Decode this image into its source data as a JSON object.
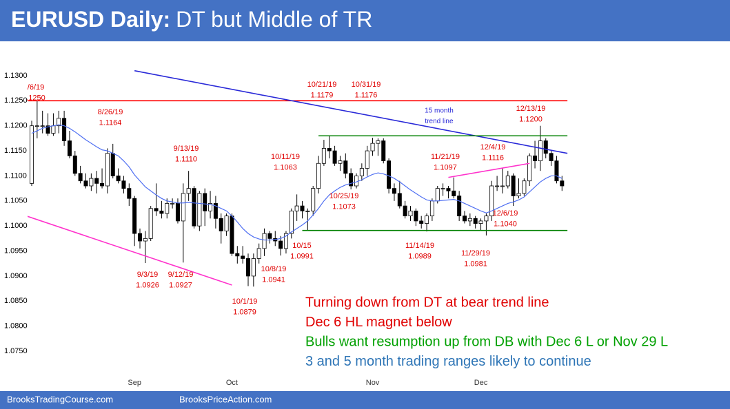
{
  "header": {
    "title_bold": "EURUSD Daily:",
    "title_rest": "DT but Middle of TR"
  },
  "footer": {
    "left": "BrooksTradingCourse.com",
    "right": "BrooksPriceAction.com"
  },
  "chart_data": {
    "type": "candlestick",
    "categories": [
      null,
      null,
      null,
      null,
      null,
      null,
      null,
      null,
      null,
      null,
      null,
      null,
      null,
      null,
      null,
      null,
      null,
      null,
      null,
      "Sep",
      null,
      null,
      null,
      null,
      null,
      null,
      null,
      null,
      null,
      null,
      null,
      null,
      null,
      null,
      null,
      null,
      null,
      "Oct",
      null,
      null,
      null,
      null,
      null,
      null,
      null,
      null,
      null,
      null,
      null,
      null,
      null,
      null,
      null,
      null,
      null,
      null,
      null,
      null,
      null,
      null,
      null,
      null,
      null,
      "Nov",
      null,
      null,
      null,
      null,
      null,
      null,
      null,
      null,
      null,
      null,
      null,
      null,
      null,
      null,
      null,
      null,
      null,
      null,
      null,
      "Dec",
      null,
      null,
      null,
      null,
      null,
      null,
      null,
      null,
      null,
      null,
      null,
      null,
      null,
      null,
      null
    ],
    "open": [
      1.1085,
      1.12,
      1.12,
      1.12,
      1.1185,
      1.12,
      1.1215,
      1.117,
      1.114,
      1.1105,
      1.109,
      1.108,
      1.1095,
      1.1085,
      1.108,
      1.1145,
      1.11,
      1.109,
      1.1075,
      1.1055,
      1.0985,
      1.097,
      1.0975,
      1.1035,
      1.103,
      1.1025,
      1.1045,
      1.1045,
      1.101,
      1.1065,
      1.1075,
      1.1,
      1.1065,
      1.103,
      1.1045,
      1.1015,
      1.099,
      1.102,
      1.0945,
      1.094,
      1.0935,
      1.09,
      1.0935,
      1.0955,
      1.0985,
      1.0975,
      1.097,
      1.0955,
      1.0985,
      1.103,
      1.104,
      1.103,
      1.103,
      1.1075,
      1.1125,
      1.1155,
      1.115,
      1.1125,
      1.113,
      1.1105,
      1.108,
      1.11,
      1.1115,
      1.115,
      1.1165,
      1.117,
      1.113,
      1.1075,
      1.1065,
      1.104,
      1.102,
      1.103,
      1.101,
      1.1005,
      1.102,
      1.105,
      1.1075,
      1.1075,
      1.107,
      1.106,
      1.102,
      1.101,
      1.1015,
      1.1005,
      1.101,
      1.102,
      1.108,
      1.108,
      1.108,
      1.11,
      1.106,
      1.1065,
      1.109,
      1.114,
      1.113,
      1.117,
      1.1145,
      1.113,
      1.109
    ],
    "high": [
      1.121,
      1.125,
      1.123,
      1.1225,
      1.1225,
      1.123,
      1.123,
      1.119,
      1.115,
      1.112,
      1.1105,
      1.1105,
      1.111,
      1.1115,
      1.1155,
      1.1164,
      1.1115,
      1.11,
      1.1085,
      1.106,
      1.0995,
      1.099,
      1.104,
      1.1085,
      1.105,
      1.1055,
      1.1055,
      1.1055,
      1.1085,
      1.111,
      1.108,
      1.107,
      1.1075,
      1.107,
      1.106,
      1.1025,
      1.1025,
      1.1025,
      1.096,
      1.096,
      1.0945,
      1.0945,
      1.0965,
      1.0995,
      1.099,
      1.099,
      1.098,
      1.099,
      1.1035,
      1.1063,
      1.105,
      1.1035,
      1.108,
      1.114,
      1.1172,
      1.1179,
      1.116,
      1.114,
      1.1145,
      1.1115,
      1.1105,
      1.1125,
      1.116,
      1.1176,
      1.1175,
      1.1175,
      1.1135,
      1.1085,
      1.109,
      1.105,
      1.104,
      1.1035,
      1.102,
      1.1025,
      1.1055,
      1.108,
      1.1085,
      1.108,
      1.1097,
      1.107,
      1.103,
      1.1025,
      1.102,
      1.1015,
      1.1025,
      1.109,
      1.11,
      1.1116,
      1.111,
      1.1105,
      1.1095,
      1.1095,
      1.1145,
      1.117,
      1.12,
      1.1175,
      1.115,
      1.114,
      1.11
    ],
    "low": [
      1.108,
      1.1175,
      1.1185,
      1.118,
      1.118,
      1.1185,
      1.116,
      1.1135,
      1.11,
      1.1085,
      1.1075,
      1.107,
      1.1065,
      1.1075,
      1.1065,
      1.1095,
      1.1085,
      1.1065,
      1.104,
      1.096,
      1.0955,
      1.0926,
      1.097,
      1.102,
      1.1015,
      1.1015,
      1.1035,
      1.1005,
      1.0927,
      1.105,
      1.0995,
      1.099,
      1.1,
      1.1015,
      1.0995,
      1.0965,
      1.098,
      1.094,
      1.0925,
      1.0925,
      1.088,
      1.0879,
      1.0925,
      1.094,
      1.0965,
      1.096,
      1.0941,
      1.0945,
      1.0975,
      1.101,
      1.1015,
      1.0991,
      1.102,
      1.1065,
      1.112,
      1.1135,
      1.112,
      1.111,
      1.1095,
      1.1073,
      1.1075,
      1.109,
      1.11,
      1.114,
      1.114,
      1.1125,
      1.1065,
      1.105,
      1.1035,
      1.1015,
      1.101,
      1.1,
      1.0995,
      1.0989,
      1.101,
      1.1045,
      1.106,
      1.1055,
      1.1055,
      1.101,
      1.1005,
      1.1,
      1.0995,
      1.099,
      1.0981,
      1.101,
      1.107,
      1.1065,
      1.1075,
      1.104,
      1.1055,
      1.106,
      1.108,
      1.1115,
      1.111,
      1.1135,
      1.112,
      1.1085,
      1.107
    ],
    "close": [
      1.12,
      1.12,
      1.12,
      1.1185,
      1.12,
      1.1215,
      1.117,
      1.114,
      1.1105,
      1.109,
      1.108,
      1.1095,
      1.1085,
      1.108,
      1.1145,
      1.11,
      1.109,
      1.1075,
      1.1055,
      1.0985,
      1.097,
      1.0975,
      1.1035,
      1.103,
      1.1025,
      1.1045,
      1.1045,
      1.101,
      1.1065,
      1.1075,
      1.1,
      1.1065,
      1.103,
      1.1045,
      1.1015,
      1.099,
      1.102,
      1.0945,
      1.094,
      1.0935,
      1.09,
      1.0935,
      1.0955,
      1.0985,
      1.0975,
      1.097,
      1.0955,
      1.0985,
      1.103,
      1.104,
      1.103,
      1.103,
      1.1075,
      1.1125,
      1.1155,
      1.115,
      1.1125,
      1.113,
      1.1105,
      1.108,
      1.11,
      1.1115,
      1.115,
      1.1165,
      1.117,
      1.113,
      1.1075,
      1.1065,
      1.104,
      1.102,
      1.103,
      1.101,
      1.1005,
      1.102,
      1.105,
      1.1075,
      1.1075,
      1.107,
      1.106,
      1.102,
      1.101,
      1.1015,
      1.1005,
      1.101,
      1.102,
      1.108,
      1.108,
      1.108,
      1.11,
      1.106,
      1.1065,
      1.109,
      1.114,
      1.113,
      1.117,
      1.1145,
      1.113,
      1.109,
      1.108
    ],
    "up_color": "#ffffff",
    "down_color": "#000000",
    "ema": {
      "color": "#4f6ff2",
      "values": [
        1.1185,
        1.119,
        1.1195,
        1.1198,
        1.12,
        1.1202,
        1.12,
        1.1195,
        1.1188,
        1.118,
        1.1172,
        1.1165,
        1.1158,
        1.1152,
        1.115,
        1.1145,
        1.114,
        1.113,
        1.1118,
        1.1102,
        1.109,
        1.1078,
        1.107,
        1.1062,
        1.1055,
        1.105,
        1.1048,
        1.1046,
        1.1046,
        1.1047,
        1.1046,
        1.1045,
        1.1044,
        1.1043,
        1.104,
        1.1035,
        1.103,
        1.102,
        1.1008,
        1.0995,
        1.0985,
        1.0978,
        1.0974,
        1.0972,
        1.0972,
        1.0973,
        1.0975,
        1.098,
        1.0988,
        1.0995,
        1.1002,
        1.101,
        1.1022,
        1.1035,
        1.105,
        1.1062,
        1.107,
        1.1077,
        1.1082,
        1.1085,
        1.1088,
        1.1092,
        1.1098,
        1.1103,
        1.1106,
        1.1104,
        1.11,
        1.1095,
        1.1088,
        1.108,
        1.1072,
        1.1065,
        1.1058,
        1.1052,
        1.105,
        1.105,
        1.1051,
        1.1052,
        1.1053,
        1.105,
        1.1045,
        1.104,
        1.1035,
        1.103,
        1.1026,
        1.103,
        1.1035,
        1.104,
        1.1045,
        1.1048,
        1.1052,
        1.1058,
        1.1068,
        1.1078,
        1.1088,
        1.1095,
        1.11,
        1.11,
        1.1095
      ]
    },
    "ylim": [
      1.07,
      1.135
    ],
    "yticks": [
      {
        "value": 1.13,
        "label": "1.1300"
      },
      {
        "value": 1.125,
        "label": "1.1250"
      },
      {
        "value": 1.12,
        "label": "1.1200"
      },
      {
        "value": 1.115,
        "label": "1.1150"
      },
      {
        "value": 1.11,
        "label": "1.1100"
      },
      {
        "value": 1.105,
        "label": "1.1050"
      },
      {
        "value": 1.1,
        "label": "1.1000"
      },
      {
        "value": 1.095,
        "label": "1.0950"
      },
      {
        "value": 1.09,
        "label": "1.0900"
      },
      {
        "value": 1.085,
        "label": "1.0850"
      },
      {
        "value": 1.08,
        "label": "1.0800"
      },
      {
        "value": 1.075,
        "label": "1.0750"
      }
    ],
    "lines": [
      {
        "color": "#ff0000",
        "x": [
          -1,
          99
        ],
        "y": [
          1.125,
          1.125
        ]
      },
      {
        "color": "#2a2ad8",
        "x": [
          19,
          99
        ],
        "y": [
          1.131,
          1.1145
        ]
      },
      {
        "color": "#008000",
        "x": [
          53,
          99
        ],
        "y": [
          1.118,
          1.118
        ]
      },
      {
        "color": "#008000",
        "x": [
          50,
          99
        ],
        "y": [
          1.0991,
          1.0991
        ]
      },
      {
        "color": "#ff33cc",
        "x": [
          -1,
          37
        ],
        "y": [
          1.102,
          1.0882
        ]
      },
      {
        "color": "#ff33cc",
        "x": [
          77,
          92
        ],
        "y": [
          1.1097,
          1.1125
        ]
      }
    ],
    "annotation_color": "#e00000",
    "annotations": [
      {
        "text": [
          "/6/19",
          ".1250"
        ]
      },
      {
        "text": [
          "8/26/19",
          "1.1164"
        ]
      },
      {
        "text": [
          "9/13/19",
          "1.1110"
        ]
      },
      {
        "text": [
          "10/21/19",
          "1.1179"
        ]
      },
      {
        "text": [
          "10/31/19",
          "1.1176"
        ]
      },
      {
        "text": [
          "15 month",
          "trend line"
        ],
        "color": "#2a2ad8"
      },
      {
        "text": [
          "12/13/19",
          "1.1200"
        ]
      },
      {
        "text": [
          "12/4/19",
          "1.1116"
        ]
      },
      {
        "text": [
          "11/21/19",
          "1.1097"
        ]
      },
      {
        "text": [
          "10/11/19",
          "1.1063"
        ]
      },
      {
        "text": [
          "10/25/19",
          "1.1073"
        ]
      },
      {
        "text": [
          "12/6/19",
          "1.1040"
        ]
      },
      {
        "text": [
          "10/15",
          "1.0991"
        ]
      },
      {
        "text": [
          "11/14/19",
          "1.0989"
        ]
      },
      {
        "text": [
          "11/29/19",
          "1.0981"
        ]
      },
      {
        "text": [
          "9/3/19",
          "1.0926"
        ]
      },
      {
        "text": [
          "9/12/19",
          "1.0927"
        ]
      },
      {
        "text": [
          "10/8/19",
          "1.0941"
        ]
      },
      {
        "text": [
          "10/1/19",
          "1.0879"
        ]
      }
    ],
    "notes": [
      {
        "text": "Turning down from DT at bear trend line",
        "color": "#e00000"
      },
      {
        "text": "Dec 6 HL magnet below",
        "color": "#e00000"
      },
      {
        "text": "Bulls want resumption up from DB with Dec 6 L or Nov 29 L",
        "color": "#00a000"
      },
      {
        "text": "3 and 5 month trading ranges likely to continue",
        "color": "#2e75b6"
      }
    ]
  }
}
